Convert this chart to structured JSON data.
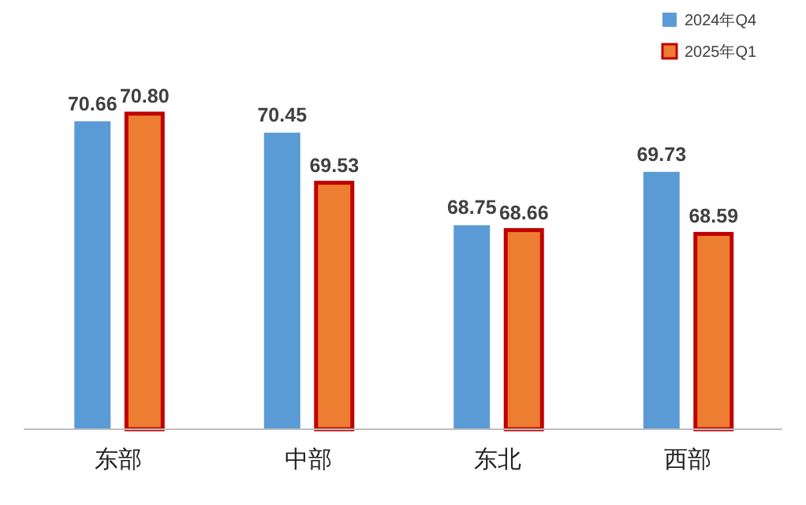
{
  "chart_data": {
    "type": "bar",
    "categories": [
      "东部",
      "中部",
      "东北",
      "西部"
    ],
    "series": [
      {
        "name": "2024年Q4",
        "color": "#5b9bd5",
        "values": [
          70.66,
          70.45,
          68.75,
          69.73
        ],
        "value_labels": [
          "70.66",
          "70.45",
          "68.75",
          "69.73"
        ]
      },
      {
        "name": "2025年Q1",
        "color": "#ed7d31",
        "values": [
          70.8,
          69.53,
          68.66,
          68.59
        ],
        "value_labels": [
          "70.80",
          "69.53",
          "68.66",
          "68.59"
        ]
      }
    ],
    "ylim": [
      65,
      70.8
    ],
    "legend": "top right"
  }
}
